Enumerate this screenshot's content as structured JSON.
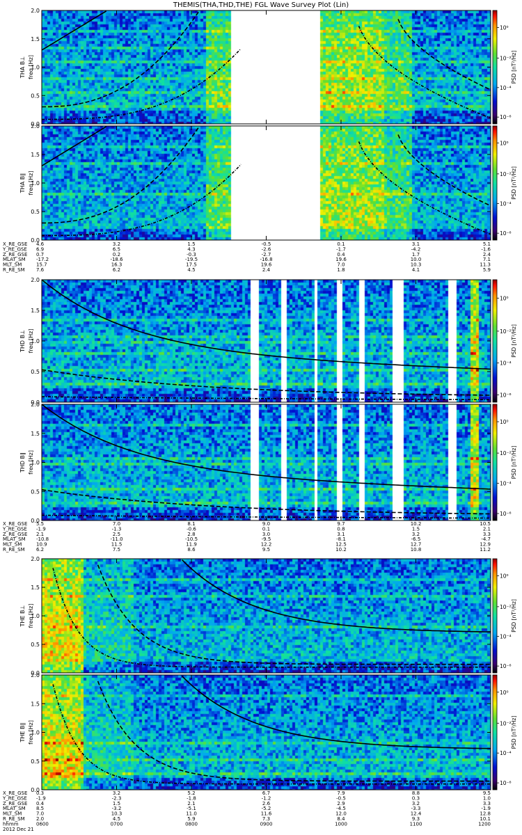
{
  "title": "THEMIS(THA,THD,THE) FGL Wave Survey Plot (Lin)",
  "colorbar_label": "PSD [nT²/Hz]",
  "colorbar_ticks": [
    "10⁰",
    "10⁻²",
    "10⁻⁴",
    "10⁻⁶"
  ],
  "freq_label": "freq [Hz]",
  "y_ticks": [
    "0.0",
    "0.5",
    "1.0",
    "1.5",
    "2.0"
  ],
  "chart_data": {
    "type": "heatmap",
    "y_range_hz": [
      0,
      2.0
    ],
    "colorbar_log_range": [
      -7,
      1
    ],
    "panels": [
      {
        "id": "tha-bl",
        "label": "THA B⊥",
        "group": 0,
        "gaps": [
          [
            0.42,
            0.62
          ]
        ],
        "fill": "hot-after-gap"
      },
      {
        "id": "tha-bpar",
        "label": "THA B∥",
        "group": 0,
        "gaps": [
          [
            0.42,
            0.62
          ]
        ],
        "fill": "hot-after-gap"
      },
      {
        "id": "thd-bl",
        "label": "THD B⊥",
        "group": 1,
        "gaps": [
          [
            0.465,
            0.482
          ],
          [
            0.528,
            0.542
          ],
          [
            0.602,
            0.612
          ],
          [
            0.652,
            0.664
          ],
          [
            0.702,
            0.716
          ],
          [
            0.778,
            0.805
          ],
          [
            0.905,
            0.918
          ]
        ],
        "fill": "cool"
      },
      {
        "id": "thd-bpar",
        "label": "THD B∥",
        "group": 1,
        "gaps": [
          [
            0.465,
            0.482
          ],
          [
            0.528,
            0.542
          ],
          [
            0.602,
            0.612
          ],
          [
            0.652,
            0.664
          ],
          [
            0.702,
            0.716
          ],
          [
            0.778,
            0.805
          ],
          [
            0.905,
            0.918
          ]
        ],
        "fill": "cool"
      },
      {
        "id": "the-bl",
        "label": "THE B⊥",
        "group": 2,
        "gaps": [],
        "fill": "hot-start"
      },
      {
        "id": "the-bpar",
        "label": "THE B∥",
        "group": 2,
        "gaps": [],
        "fill": "hot-start"
      }
    ],
    "ephemeris": [
      {
        "rows": [
          {
            "name": "X_RE_GSE",
            "values": [
              "4.6",
              "3.2",
              "1.5",
              "-0.5",
              "0.1",
              "3.1",
              "5.1"
            ]
          },
          {
            "name": "Y_RE_GSE",
            "values": [
              "6.9",
              "6.5",
              "4.3",
              "-2.6",
              "-1.7",
              "-4.2",
              "-1.6"
            ]
          },
          {
            "name": "Z_RE_GSE",
            "values": [
              "0.7",
              "0.2",
              "-0.3",
              "-2.7",
              "0.4",
              "1.7",
              "2.4"
            ]
          },
          {
            "name": "MLAT_SM",
            "values": [
              "-17.2",
              "-18.6",
              "-19.5",
              "-16.8",
              "19.6",
              "10.0",
              "7.1"
            ]
          },
          {
            "name": "MLT_SM",
            "values": [
              "15.7",
              "16.3",
              "17.5",
              "19.6",
              "7.0",
              "10.3",
              "11.3"
            ]
          },
          {
            "name": "R_RE_SM",
            "values": [
              "7.6",
              "6.2",
              "4.5",
              "2.4",
              "1.8",
              "4.1",
              "5.9"
            ]
          }
        ]
      },
      {
        "rows": [
          {
            "name": "X_RE_GSE",
            "values": [
              "5.5",
              "7.0",
              "8.1",
              "9.0",
              "9.7",
              "10.2",
              "10.5"
            ]
          },
          {
            "name": "Y_RE_GSE",
            "values": [
              "-1.9",
              "-1.3",
              "-0.6",
              "0.1",
              "0.8",
              "1.5",
              "2.1"
            ]
          },
          {
            "name": "Z_RE_GSE",
            "values": [
              "2.1",
              "2.5",
              "2.8",
              "3.0",
              "3.1",
              "3.2",
              "3.3"
            ]
          },
          {
            "name": "MLAT_SM",
            "values": [
              "-10.8",
              "-11.0",
              "-10.5",
              "-9.5",
              "-8.1",
              "-6.5",
              "-4.7"
            ]
          },
          {
            "name": "MLT_SM",
            "values": [
              "10.9",
              "11.5",
              "11.9",
              "12.2",
              "12.5",
              "12.7",
              "12.9"
            ]
          },
          {
            "name": "R_RE_SM",
            "values": [
              "6.2",
              "7.5",
              "8.6",
              "9.5",
              "10.2",
              "10.8",
              "11.2"
            ]
          }
        ]
      },
      {
        "rows": [
          {
            "name": "X_RE_GSE",
            "values": [
              "0.3",
              "3.2",
              "5.2",
              "6.7",
              "7.9",
              "8.8",
              "9.5"
            ]
          },
          {
            "name": "Y_RE_GSE",
            "values": [
              "-1.9",
              "-2.3",
              "-1.8",
              "-1.2",
              "-0.5",
              "0.3",
              "1.0"
            ]
          },
          {
            "name": "Z_RE_GSE",
            "values": [
              "0.4",
              "1.5",
              "2.1",
              "2.6",
              "2.9",
              "3.2",
              "3.3"
            ]
          },
          {
            "name": "MLAT_SM",
            "values": [
              "8.5",
              "-3.2",
              "-5.1",
              "-5.2",
              "-4.5",
              "-3.3",
              "-1.9"
            ]
          },
          {
            "name": "MLT_SM",
            "values": [
              "7.0",
              "10.3",
              "11.0",
              "11.6",
              "12.0",
              "12.4",
              "12.8"
            ]
          },
          {
            "name": "R_RE_SM",
            "values": [
              "2.0",
              "4.5",
              "5.9",
              "7.3",
              "8.4",
              "9.3",
              "10.1"
            ]
          },
          {
            "name": "hhmm",
            "values": [
              "0600",
              "0700",
              "0800",
              "0900",
              "1000",
              "1100",
              "1200"
            ]
          }
        ],
        "date": "2012 Dec 21"
      }
    ]
  }
}
